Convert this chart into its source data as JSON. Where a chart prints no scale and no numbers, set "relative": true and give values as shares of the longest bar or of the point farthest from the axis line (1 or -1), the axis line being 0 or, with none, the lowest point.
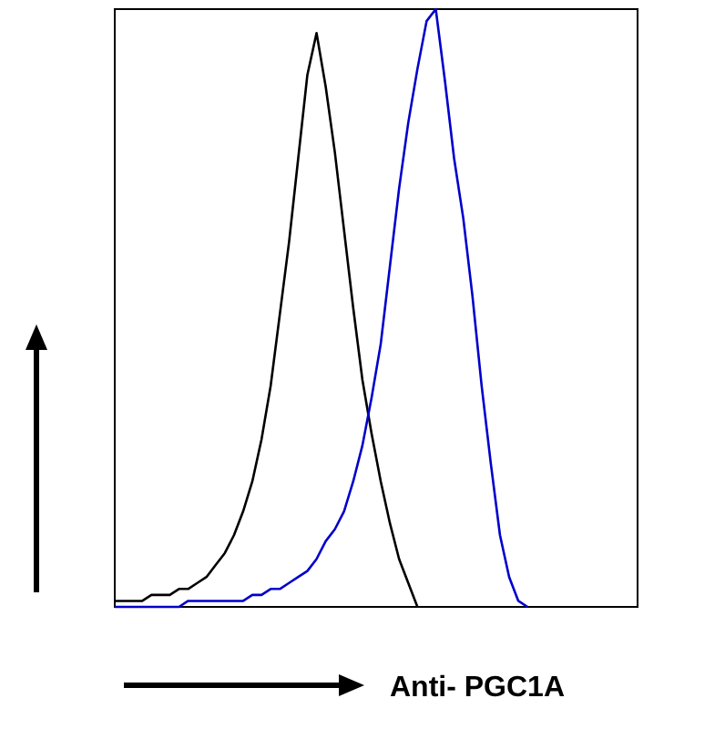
{
  "chart_data": {
    "type": "line",
    "relative": true,
    "xlabel": "Anti- PGC1A",
    "line_style": "solid",
    "categories": [
      null,
      null,
      null,
      null,
      null,
      null,
      null,
      null,
      null,
      null,
      null,
      null,
      null,
      null,
      null,
      null,
      null,
      null,
      null,
      null,
      null,
      null,
      null,
      null,
      null,
      null,
      null,
      null,
      null,
      null,
      null,
      null,
      null,
      null,
      null,
      null,
      null,
      null,
      null,
      null,
      null,
      null,
      null,
      null,
      null,
      null,
      null,
      null,
      null,
      null,
      null,
      null,
      null,
      null,
      null,
      null,
      null,
      null
    ],
    "series": [
      {
        "color": "#000000",
        "values": [
          0.01,
          0.01,
          0.01,
          0.01,
          0.02,
          0.02,
          0.02,
          0.03,
          0.03,
          0.04,
          0.05,
          0.07,
          0.09,
          0.12,
          0.16,
          0.21,
          0.28,
          0.37,
          0.49,
          0.61,
          0.75,
          0.89,
          0.96,
          0.87,
          0.76,
          0.63,
          0.5,
          0.38,
          0.29,
          0.21,
          0.14,
          0.08,
          0.04,
          0,
          null,
          null,
          null,
          null,
          null,
          null,
          null,
          null,
          null,
          null,
          null,
          null,
          null,
          null,
          null,
          null,
          null,
          null,
          null,
          null,
          null,
          null,
          null,
          null
        ]
      },
      {
        "color": "#0000cc",
        "values": [
          0,
          0,
          0,
          0,
          0,
          0,
          0,
          0,
          0.01,
          0.01,
          0.01,
          0.01,
          0.01,
          0.01,
          0.01,
          0.02,
          0.02,
          0.03,
          0.03,
          0.04,
          0.05,
          0.06,
          0.08,
          0.11,
          0.13,
          0.16,
          0.21,
          0.27,
          0.35,
          0.44,
          0.57,
          0.7,
          0.81,
          0.9,
          0.98,
          1,
          0.88,
          0.75,
          0.65,
          0.52,
          0.37,
          0.24,
          0.12,
          0.05,
          0.01,
          0,
          null,
          null,
          null,
          null,
          null,
          null,
          null,
          null,
          null,
          null,
          null,
          null
        ]
      }
    ]
  }
}
